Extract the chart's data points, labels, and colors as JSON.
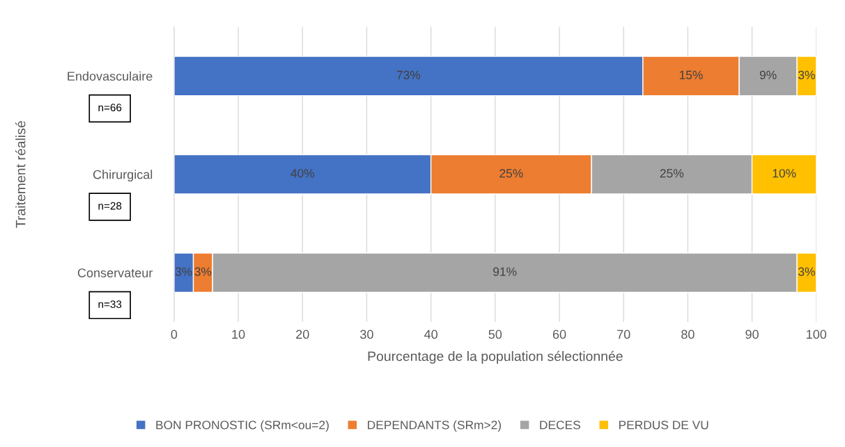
{
  "chart_data": {
    "type": "bar",
    "orientation": "horizontal",
    "stacked": true,
    "categories": [
      "Endovasculaire",
      "Chirurgical",
      "Conservateur"
    ],
    "series": [
      {
        "name": "BON PRONOSTIC (SRm<ou=2)",
        "color": "#4472c4",
        "values": [
          73,
          40,
          3
        ],
        "value_labels": [
          "73%",
          "40%",
          "3%"
        ]
      },
      {
        "name": "DEPENDANTS (SRm>2)",
        "color": "#ed7d31",
        "values": [
          15,
          25,
          3
        ],
        "value_labels": [
          "15%",
          "25%",
          "3%"
        ]
      },
      {
        "name": "DECES",
        "color": "#a5a5a5",
        "values": [
          9,
          25,
          91
        ],
        "value_labels": [
          "9%",
          "25%",
          "91%"
        ]
      },
      {
        "name": "PERDUS DE VU",
        "color": "#ffc000",
        "values": [
          3,
          10,
          3
        ],
        "value_labels": [
          "3%",
          "10%",
          "3%"
        ]
      }
    ],
    "xlabel": "Pourcentage de la population sélectionnée",
    "ylabel": "Traitement réalisé",
    "xlim": [
      0,
      100
    ],
    "xticks": [
      0,
      10,
      20,
      30,
      40,
      50,
      60,
      70,
      80,
      90,
      100
    ],
    "grid": "x",
    "legend": "bottom",
    "annotations": [
      "n=66",
      "n=28",
      "n=33"
    ]
  }
}
